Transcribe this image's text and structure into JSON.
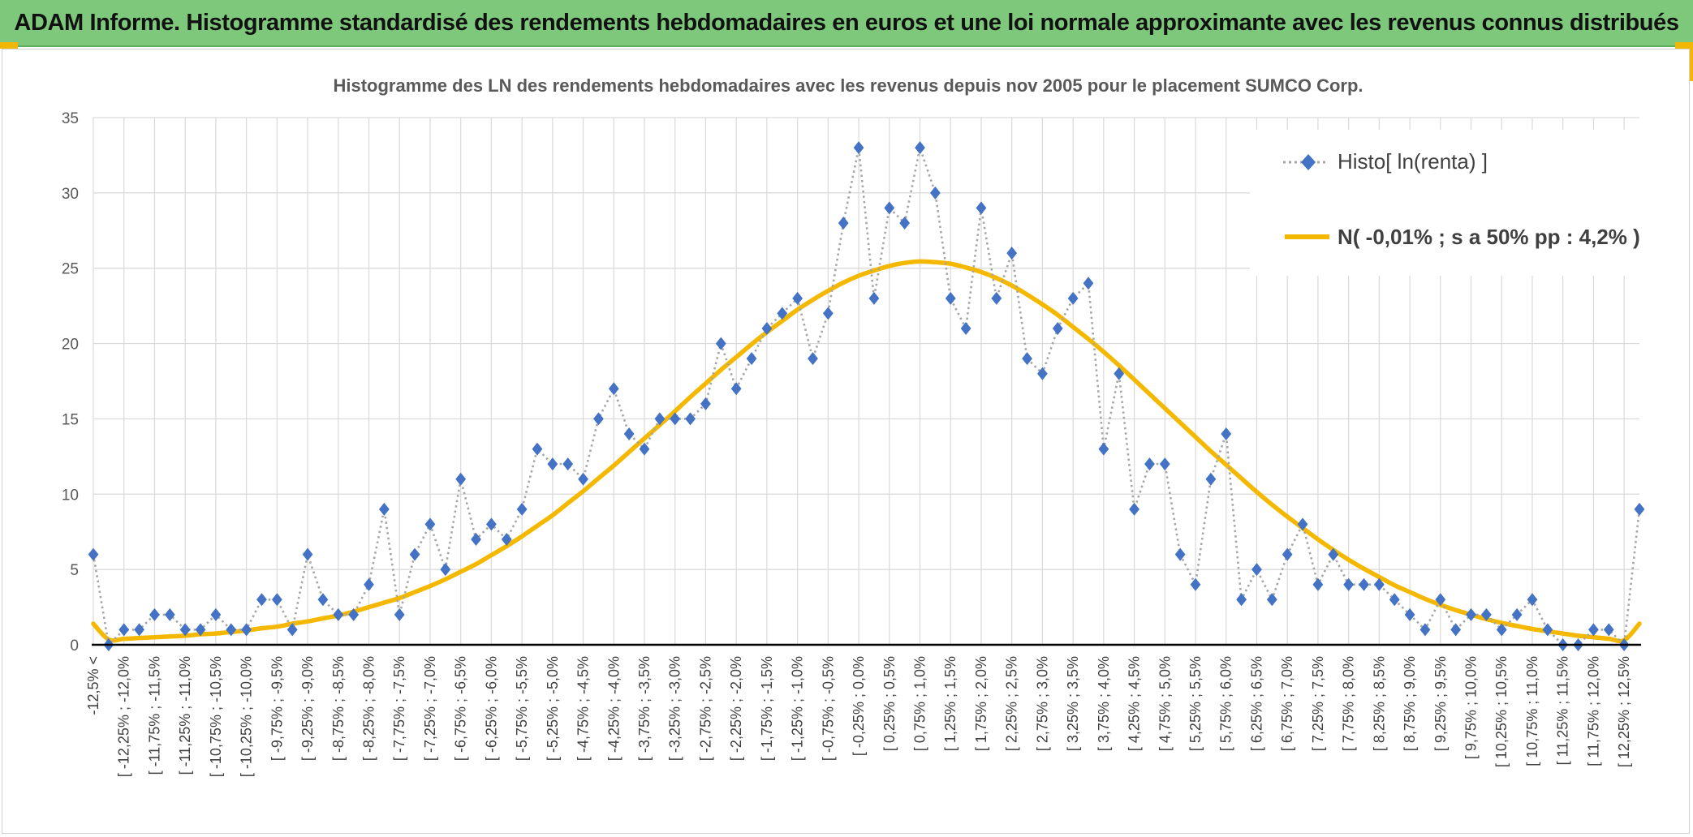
{
  "banner": {
    "title": "ADAM Informe. Histogramme standardisé des rendements hebdomadaires en euros et une loi normale approximante avec les revenus connus distribués"
  },
  "colors": {
    "banner_bg": "#7ec87c",
    "accent": "#f2b705",
    "marker": "#4472c4",
    "dotted_line": "#a6a6a6",
    "curve": "#f5b800",
    "grid": "#d9d9d9"
  },
  "chart_data": {
    "type": "line",
    "title": "Histogramme des LN des rendements hebdomadaires avec les revenus depuis nov 2005 pour le placement SUMCO Corp.",
    "xlabel": "",
    "ylabel": "",
    "ylim": [
      0,
      35
    ],
    "yticks": [
      0,
      5,
      10,
      15,
      20,
      25,
      30,
      35
    ],
    "grid": true,
    "legend_position": "top-right",
    "x_tick_labels": [
      "-12,5% <",
      "[ -12,25% ; -12,0%",
      "[ -11,75% ; -11,5%",
      "[ -11,25% ; -11,0%",
      "[ -10,75% ; -10,5%",
      "[ -10,25% ; -10,0%",
      "[ -9,75% ; -9,5%",
      "[ -9,25% ; -9,0%",
      "[ -8,75% ; -8,5%",
      "[ -8,25% ; -8,0%",
      "[ -7,75% ; -7,5%",
      "[ -7,25% ; -7,0%",
      "[ -6,75% ; -6,5%",
      "[ -6,25% ; -6,0%",
      "[ -5,75% ; -5,5%",
      "[ -5,25% ; -5,0%",
      "[ -4,75% ; -4,5%",
      "[ -4,25% ; -4,0%",
      "[ -3,75% ; -3,5%",
      "[ -3,25% ; -3,0%",
      "[ -2,75% ; -2,5%",
      "[ -2,25% ; -2,0%",
      "[ -1,75% ; -1,5%",
      "[ -1,25% ; -1,0%",
      "[ -0,75% ; -0,5%",
      "[ -0,25% ; 0,0%",
      "[ 0,25% ; 0,5%",
      "[ 0,75% ; 1,0%",
      "[ 1,25% ; 1,5%",
      "[ 1,75% ; 2,0%",
      "[ 2,25% ; 2,5%",
      "[ 2,75% ; 3,0%",
      "[ 3,25% ; 3,5%",
      "[ 3,75% ; 4,0%",
      "[ 4,25% ; 4,5%",
      "[ 4,75% ; 5,0%",
      "[ 5,25% ; 5,5%",
      "[ 5,75% ; 6,0%",
      "[ 6,25% ; 6,5%",
      "[ 6,75% ; 7,0%",
      "[ 7,25% ; 7,5%",
      "[ 7,75% ; 8,0%",
      "[ 8,25% ; 8,5%",
      "[ 8,75% ; 9,0%",
      "[ 9,25% ; 9,5%",
      "[ 9,75% ; 10,0%",
      "[ 10,25% ; 10,5%",
      "[ 10,75% ; 11,0%",
      "[ 11,25% ; 11,5%",
      "[ 11,75% ; 12,0%",
      "[ 12,25% ; 12,5%"
    ],
    "series": [
      {
        "name": "Histo[ ln(renta) ]",
        "style": "dotted-line-diamond-markers",
        "values": [
          6,
          0,
          1,
          1,
          2,
          2,
          1,
          1,
          2,
          1,
          1,
          3,
          3,
          1,
          6,
          3,
          2,
          2,
          4,
          9,
          2,
          6,
          8,
          5,
          11,
          7,
          8,
          7,
          9,
          13,
          12,
          12,
          11,
          15,
          17,
          14,
          13,
          15,
          15,
          15,
          16,
          20,
          17,
          19,
          21,
          22,
          23,
          19,
          22,
          28,
          33,
          23,
          29,
          28,
          33,
          30,
          23,
          21,
          29,
          23,
          26,
          19,
          18,
          21,
          23,
          24,
          13,
          18,
          9,
          12,
          12,
          6,
          4,
          11,
          14,
          3,
          5,
          3,
          6,
          8,
          4,
          6,
          4,
          4,
          4,
          3,
          2,
          1,
          3,
          1,
          2,
          2,
          1,
          2,
          3,
          1,
          0,
          0,
          1,
          1,
          0,
          9
        ]
      },
      {
        "name": "N( -0,01% ; s a 50% pp : 4,2% )",
        "style": "smooth-line",
        "values": [
          1.4,
          0.35,
          0.4,
          0.45,
          0.5,
          0.55,
          0.6,
          0.7,
          0.75,
          0.85,
          0.95,
          1.1,
          1.2,
          1.4,
          1.55,
          1.75,
          1.95,
          2.2,
          2.5,
          2.8,
          3.1,
          3.5,
          3.9,
          4.35,
          4.85,
          5.35,
          5.95,
          6.55,
          7.2,
          7.9,
          8.6,
          9.4,
          10.2,
          11.05,
          11.9,
          12.8,
          13.7,
          14.6,
          15.5,
          16.45,
          17.35,
          18.25,
          19.1,
          19.95,
          20.75,
          21.5,
          22.25,
          22.9,
          23.5,
          24.05,
          24.5,
          24.85,
          25.15,
          25.35,
          25.45,
          25.4,
          25.3,
          25.05,
          24.75,
          24.35,
          23.85,
          23.25,
          22.6,
          21.9,
          21.1,
          20.3,
          19.45,
          18.55,
          17.6,
          16.65,
          15.7,
          14.75,
          13.8,
          12.85,
          11.95,
          11.05,
          10.15,
          9.3,
          8.5,
          7.75,
          7.0,
          6.3,
          5.65,
          5.05,
          4.5,
          3.95,
          3.5,
          3.05,
          2.65,
          2.3,
          2.0,
          1.7,
          1.45,
          1.25,
          1.05,
          0.9,
          0.75,
          0.6,
          0.5,
          0.4,
          0.3,
          1.4
        ]
      }
    ]
  }
}
